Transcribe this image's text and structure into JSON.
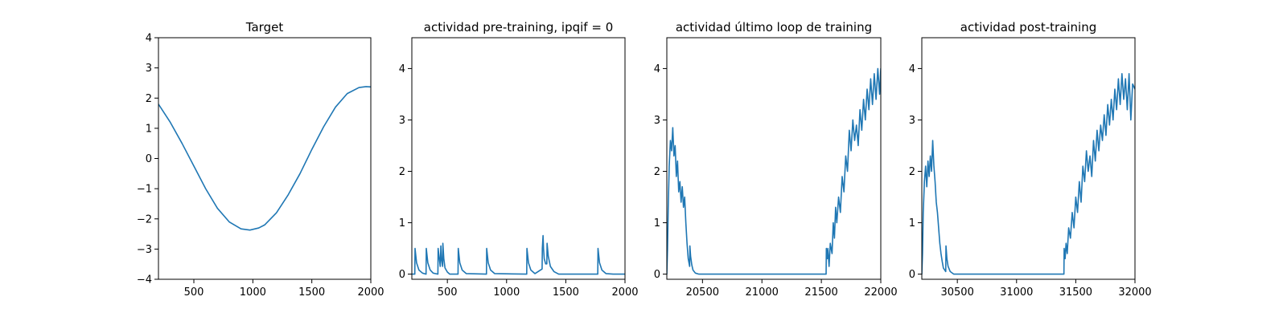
{
  "colors": {
    "series": "#1f77b4",
    "axes": "#000000",
    "background": "#ffffff"
  },
  "chart_data": [
    {
      "type": "line",
      "title": "Target",
      "xlabel": "",
      "ylabel": "",
      "xlim": [
        200,
        2000
      ],
      "ylim": [
        -4,
        4
      ],
      "xticks": [
        500,
        1000,
        1500,
        2000
      ],
      "yticks": [
        -4,
        -3,
        -2,
        -1,
        0,
        1,
        2,
        3,
        4
      ],
      "xtick_labels": [
        "500",
        "1000",
        "1500",
        "2000"
      ],
      "ytick_labels": [
        "−4",
        "−3",
        "−2",
        "−1",
        "0",
        "1",
        "2",
        "3",
        "4"
      ],
      "grid": false,
      "series": [
        {
          "x": [
            200,
            300,
            400,
            500,
            600,
            700,
            800,
            900,
            975,
            1050,
            1100,
            1200,
            1300,
            1400,
            1500,
            1600,
            1700,
            1800,
            1900,
            1960,
            2000
          ],
          "values": [
            1.8,
            1.2,
            0.5,
            -0.25,
            -1.0,
            -1.65,
            -2.1,
            -2.33,
            -2.37,
            -2.3,
            -2.2,
            -1.8,
            -1.2,
            -0.5,
            0.3,
            1.05,
            1.7,
            2.15,
            2.35,
            2.38,
            2.37
          ]
        }
      ]
    },
    {
      "type": "line",
      "title": "actividad pre-training, ipqif = 0",
      "xlabel": "",
      "ylabel": "",
      "xlim": [
        200,
        2000
      ],
      "ylim": [
        -0.1,
        4.6
      ],
      "xticks": [
        500,
        1000,
        1500,
        2000
      ],
      "yticks": [
        0,
        1,
        2,
        3,
        4
      ],
      "xtick_labels": [
        "500",
        "1000",
        "1500",
        "2000"
      ],
      "ytick_labels": [
        "0",
        "1",
        "2",
        "3",
        "4"
      ],
      "grid": false,
      "series": [
        {
          "x": [
            200,
            225,
            227,
            240,
            260,
            290,
            320,
            322,
            335,
            355,
            380,
            420,
            422,
            432,
            440,
            445,
            450,
            460,
            462,
            470,
            480,
            500,
            520,
            590,
            592,
            605,
            625,
            660,
            830,
            832,
            845,
            865,
            900,
            1170,
            1172,
            1185,
            1205,
            1240,
            1300,
            1302,
            1308,
            1312,
            1318,
            1330,
            1340,
            1342,
            1352,
            1370,
            1400,
            1440,
            1770,
            1772,
            1785,
            1805,
            1840,
            1900,
            2000
          ],
          "values": [
            0.0,
            0.0,
            0.5,
            0.22,
            0.08,
            0.02,
            0.0,
            0.5,
            0.22,
            0.08,
            0.02,
            0.0,
            0.5,
            0.3,
            0.15,
            0.55,
            0.3,
            0.15,
            0.6,
            0.3,
            0.12,
            0.04,
            0.0,
            0.0,
            0.5,
            0.22,
            0.08,
            0.01,
            0.0,
            0.5,
            0.22,
            0.08,
            0.01,
            0.0,
            0.5,
            0.22,
            0.08,
            0.01,
            0.1,
            0.5,
            0.75,
            0.5,
            0.3,
            0.2,
            0.2,
            0.6,
            0.35,
            0.15,
            0.05,
            0.0,
            0.0,
            0.5,
            0.22,
            0.08,
            0.01,
            0.0,
            0.0
          ]
        }
      ]
    },
    {
      "type": "line",
      "title": "actividad último loop de training",
      "xlabel": "",
      "ylabel": "",
      "xlim": [
        20200,
        22000
      ],
      "ylim": [
        -0.1,
        4.6
      ],
      "xticks": [
        20500,
        21000,
        21500,
        22000
      ],
      "yticks": [
        0,
        1,
        2,
        3,
        4
      ],
      "xtick_labels": [
        "20500",
        "21000",
        "21500",
        "22000"
      ],
      "ytick_labels": [
        "0",
        "1",
        "2",
        "3",
        "4"
      ],
      "grid": false,
      "series": [
        {
          "x": [
            20200,
            20206,
            20212,
            20220,
            20230,
            20240,
            20250,
            20260,
            20270,
            20280,
            20290,
            20300,
            20310,
            20320,
            20330,
            20340,
            20350,
            20360,
            20370,
            20380,
            20392,
            20394,
            20400,
            20410,
            20420,
            20440,
            20470,
            20500,
            21000,
            21540,
            21542,
            21550,
            21555,
            21565,
            21575,
            21590,
            21600,
            21610,
            21620,
            21630,
            21645,
            21660,
            21675,
            21690,
            21705,
            21720,
            21735,
            21750,
            21765,
            21780,
            21795,
            21810,
            21825,
            21840,
            21855,
            21870,
            21885,
            21900,
            21915,
            21930,
            21945,
            21960,
            21975,
            21990,
            22000
          ],
          "values": [
            0.0,
            0.5,
            1.3,
            2.1,
            2.6,
            2.4,
            2.85,
            2.3,
            2.5,
            1.9,
            2.2,
            1.6,
            1.8,
            1.4,
            1.7,
            1.3,
            1.5,
            1.0,
            0.6,
            0.3,
            0.15,
            0.55,
            0.35,
            0.18,
            0.08,
            0.02,
            0.0,
            0.0,
            0.0,
            0.0,
            0.5,
            0.3,
            0.5,
            0.15,
            0.6,
            0.4,
            1.0,
            0.7,
            1.3,
            1.0,
            1.5,
            1.2,
            1.9,
            1.6,
            2.3,
            2.0,
            2.8,
            2.4,
            3.0,
            2.6,
            2.9,
            2.5,
            3.2,
            2.8,
            3.4,
            3.0,
            3.6,
            3.2,
            3.8,
            3.3,
            3.9,
            3.4,
            4.0,
            3.5,
            4.0
          ]
        }
      ]
    },
    {
      "type": "line",
      "title": "actividad post-training",
      "xlabel": "",
      "ylabel": "",
      "xlim": [
        30200,
        32000
      ],
      "ylim": [
        -0.1,
        4.6
      ],
      "xticks": [
        30500,
        31000,
        31500,
        32000
      ],
      "yticks": [
        0,
        1,
        2,
        3,
        4
      ],
      "xtick_labels": [
        "30500",
        "31000",
        "31500",
        "32000"
      ],
      "ytick_labels": [
        "0",
        "1",
        "2",
        "3",
        "4"
      ],
      "grid": false,
      "series": [
        {
          "x": [
            30200,
            30206,
            30212,
            30222,
            30232,
            30242,
            30252,
            30262,
            30272,
            30282,
            30292,
            30302,
            30312,
            30322,
            30332,
            30342,
            30352,
            30362,
            30372,
            30382,
            30402,
            30404,
            30412,
            30422,
            30440,
            30470,
            30500,
            31000,
            31400,
            31402,
            31410,
            31418,
            31428,
            31440,
            31455,
            31470,
            31485,
            31500,
            31515,
            31530,
            31545,
            31560,
            31575,
            31590,
            31605,
            31620,
            31635,
            31650,
            31665,
            31680,
            31695,
            31710,
            31725,
            31740,
            31755,
            31770,
            31785,
            31800,
            31815,
            31830,
            31845,
            31860,
            31875,
            31890,
            31905,
            31920,
            31935,
            31950,
            31965,
            31980,
            32000
          ],
          "values": [
            0.0,
            0.4,
            1.2,
            1.8,
            2.1,
            1.7,
            2.2,
            1.9,
            2.3,
            2.0,
            2.6,
            2.1,
            1.8,
            1.4,
            1.2,
            0.9,
            0.6,
            0.4,
            0.25,
            0.12,
            0.05,
            0.55,
            0.3,
            0.15,
            0.05,
            0.0,
            0.0,
            0.0,
            0.0,
            0.5,
            0.3,
            0.6,
            0.4,
            0.9,
            0.7,
            1.2,
            0.9,
            1.5,
            1.2,
            1.8,
            1.4,
            2.1,
            1.8,
            2.4,
            2.0,
            2.3,
            1.9,
            2.6,
            2.2,
            2.8,
            2.4,
            2.9,
            2.6,
            3.1,
            2.7,
            3.3,
            2.9,
            3.4,
            3.0,
            3.6,
            3.2,
            3.8,
            3.3,
            3.9,
            3.4,
            3.8,
            3.2,
            3.9,
            3.0,
            3.7,
            3.6
          ]
        }
      ]
    }
  ]
}
